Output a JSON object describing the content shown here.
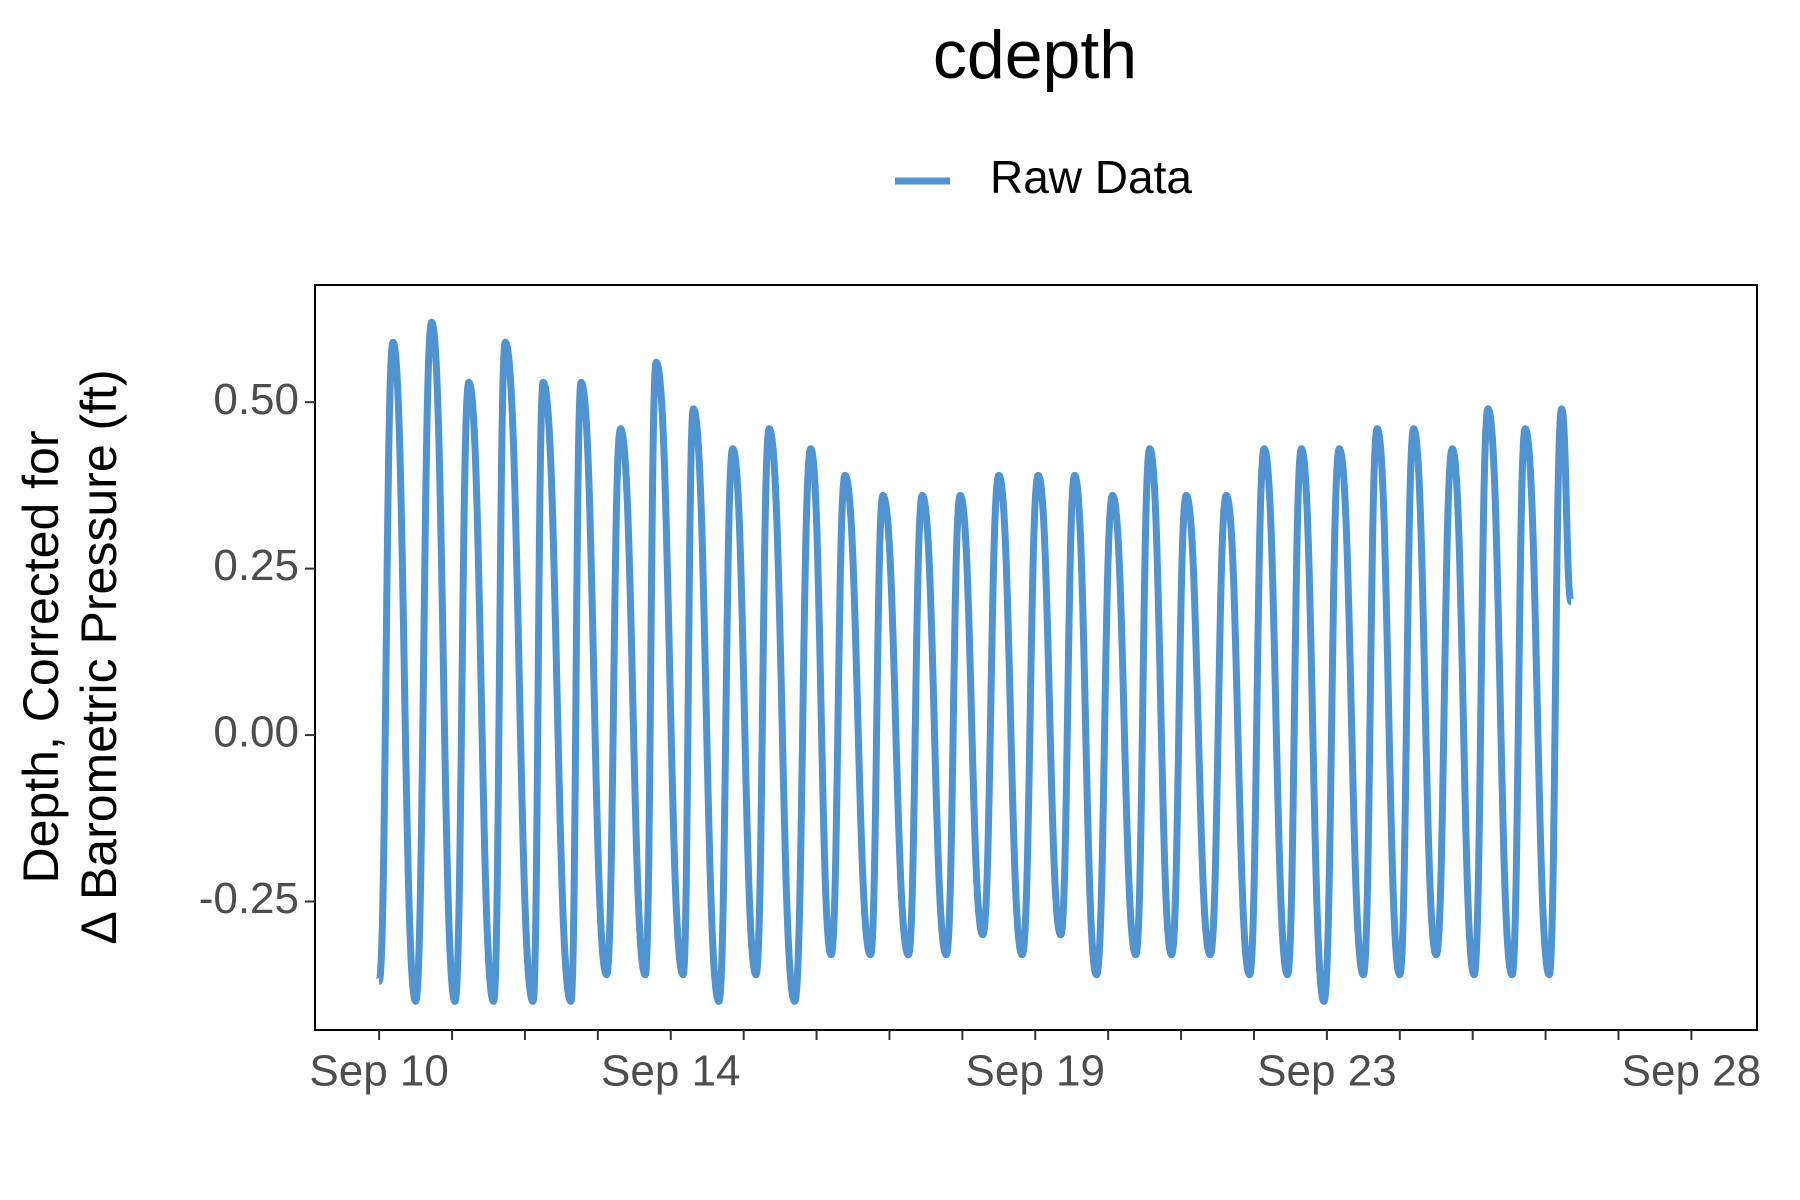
{
  "chart_data": {
    "type": "line",
    "title": "cdepth",
    "ylabel": [
      "Depth, Corrected for",
      "Δ Barometric Pressure (ft)"
    ],
    "x": [
      10.0,
      10.19,
      10.5,
      10.72,
      11.04,
      11.23,
      11.57,
      11.73,
      12.11,
      12.25,
      12.63,
      12.77,
      13.12,
      13.31,
      13.65,
      13.8,
      14.17,
      14.31,
      14.66,
      14.85,
      15.17,
      15.35,
      15.7,
      15.92,
      16.2,
      16.39,
      16.74,
      16.91,
      17.26,
      17.45,
      17.78,
      17.97,
      18.28,
      18.5,
      18.82,
      19.04,
      19.35,
      19.54,
      19.84,
      20.06,
      20.38,
      20.57,
      20.87,
      21.07,
      21.4,
      21.62,
      21.94,
      22.14,
      22.46,
      22.65,
      22.96,
      23.17,
      23.5,
      23.69,
      24.0,
      24.19,
      24.5,
      24.72,
      25.02,
      25.21,
      25.54,
      25.72,
      26.05,
      26.22,
      26.35
    ],
    "series": [
      {
        "name": "Raw Data",
        "color": "#4f93d0",
        "values": [
          -0.37,
          0.59,
          -0.4,
          0.62,
          -0.4,
          0.53,
          -0.4,
          0.59,
          -0.4,
          0.53,
          -0.4,
          0.53,
          -0.36,
          0.46,
          -0.36,
          0.56,
          -0.36,
          0.49,
          -0.4,
          0.43,
          -0.36,
          0.46,
          -0.4,
          0.43,
          -0.33,
          0.39,
          -0.33,
          0.36,
          -0.33,
          0.36,
          -0.33,
          0.36,
          -0.3,
          0.39,
          -0.33,
          0.39,
          -0.3,
          0.39,
          -0.36,
          0.36,
          -0.33,
          0.43,
          -0.33,
          0.36,
          -0.33,
          0.36,
          -0.36,
          0.43,
          -0.36,
          0.43,
          -0.4,
          0.43,
          -0.36,
          0.46,
          -0.36,
          0.46,
          -0.33,
          0.43,
          -0.36,
          0.49,
          -0.36,
          0.46,
          -0.36,
          0.49,
          0.2
        ]
      }
    ],
    "xlim": [
      9.12,
      28.9
    ],
    "xticks": [
      {
        "value": 10,
        "label": "Sep 10"
      },
      {
        "value": 14,
        "label": "Sep 14"
      },
      {
        "value": 19,
        "label": "Sep 19"
      },
      {
        "value": 23,
        "label": "Sep 23"
      },
      {
        "value": 28,
        "label": "Sep 28"
      }
    ],
    "xminorticks": [
      11,
      12,
      13,
      15,
      16,
      17,
      18,
      20,
      21,
      22,
      24,
      25,
      26,
      27
    ],
    "ylim": [
      -0.443,
      0.676
    ],
    "yticks": [
      {
        "value": -0.25,
        "label": "-0.25"
      },
      {
        "value": 0,
        "label": "0.00"
      },
      0.25,
      {
        "value": 0.5,
        "label": "0.50"
      }
    ],
    "legend": "top",
    "grid": false
  }
}
